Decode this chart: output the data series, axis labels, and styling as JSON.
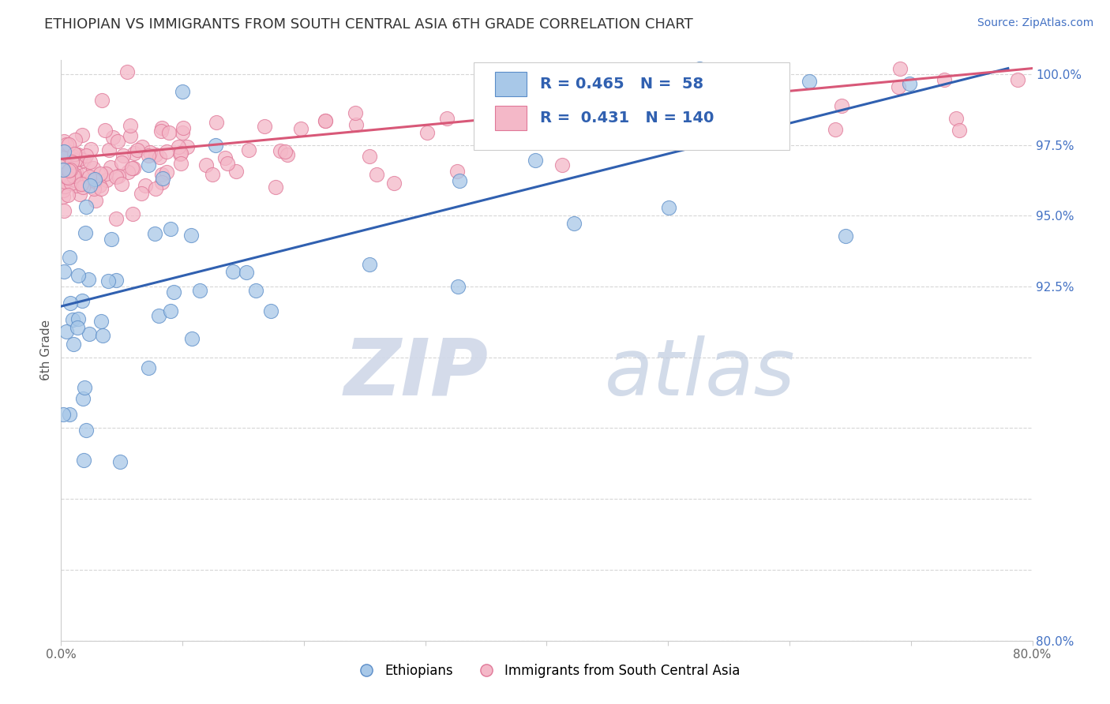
{
  "title": "ETHIOPIAN VS IMMIGRANTS FROM SOUTH CENTRAL ASIA 6TH GRADE CORRELATION CHART",
  "source_text": "Source: ZipAtlas.com",
  "ylabel": "6th Grade",
  "xlim": [
    0.0,
    80.0
  ],
  "ylim": [
    80.0,
    100.5
  ],
  "ytick_vals": [
    80.0,
    82.5,
    85.0,
    87.5,
    90.0,
    92.5,
    95.0,
    97.5,
    100.0
  ],
  "ytick_labels_right": [
    "80.0%",
    "",
    "",
    "",
    "",
    "92.5%",
    "95.0%",
    "97.5%",
    "100.0%"
  ],
  "xtick_vals": [
    0,
    10,
    20,
    30,
    40,
    50,
    60,
    70,
    80
  ],
  "xtick_labels": [
    "0.0%",
    "",
    "",
    "",
    "",
    "",
    "",
    "",
    "80.0%"
  ],
  "blue_fill": "#a8c8e8",
  "blue_edge": "#5b8dc8",
  "pink_fill": "#f4b8c8",
  "pink_edge": "#e07898",
  "blue_line_color": "#3060b0",
  "pink_line_color": "#d85878",
  "legend_R_blue": "0.465",
  "legend_N_blue": "58",
  "legend_R_pink": "0.431",
  "legend_N_pink": "140",
  "legend_value_color": "#3060b0",
  "watermark_zip": "ZIP",
  "watermark_atlas": "atlas",
  "title_fontsize": 13,
  "background_color": "#ffffff",
  "blue_trend_x0": 0.0,
  "blue_trend_y0": 91.8,
  "blue_trend_x1": 78.0,
  "blue_trend_y1": 100.2,
  "pink_trend_x0": 0.0,
  "pink_trend_y0": 97.0,
  "pink_trend_x1": 80.0,
  "pink_trend_y1": 100.2
}
